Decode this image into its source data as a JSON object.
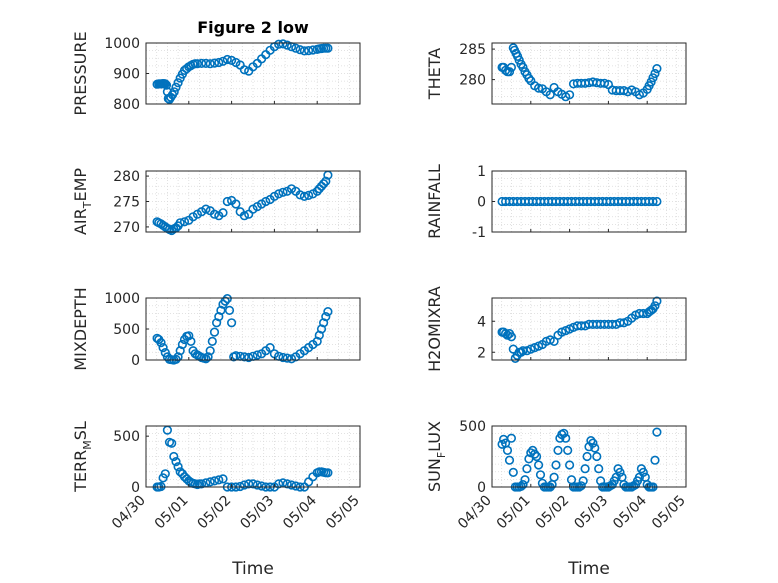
{
  "figure": {
    "xlabel": "Time"
  },
  "chart_data": [
    {
      "type": "scatter",
      "title": "Figure 2 low",
      "ylabel": "PRESSURE",
      "ylabel_sub": "",
      "ylim": [
        800,
        1000
      ],
      "yticks": [
        "800",
        "900",
        "1000"
      ],
      "grid": true,
      "xlim": [
        "04/30",
        "05/05"
      ],
      "xticks": [
        "04/30",
        "05/01",
        "05/02",
        "05/03",
        "05/04",
        "05/05"
      ],
      "color": "#0072BD",
      "x": [
        0.26,
        0.3,
        0.33,
        0.36,
        0.39,
        0.42,
        0.45,
        0.48,
        0.5,
        0.52,
        0.55,
        0.58,
        0.62,
        0.66,
        0.7,
        0.75,
        0.8,
        0.85,
        0.9,
        0.95,
        1.0,
        1.05,
        1.1,
        1.15,
        1.2,
        1.3,
        1.4,
        1.5,
        1.6,
        1.7,
        1.8,
        1.9,
        2.0,
        2.1,
        2.2,
        2.3,
        2.4,
        2.5,
        2.6,
        2.7,
        2.8,
        2.9,
        3.0,
        3.1,
        3.2,
        3.3,
        3.4,
        3.5,
        3.6,
        3.7,
        3.8,
        3.9,
        4.0,
        4.05,
        4.1,
        4.15,
        4.2,
        4.25
      ],
      "y": [
        865,
        866,
        866,
        866,
        867,
        867,
        866,
        862,
        840,
        818,
        815,
        822,
        830,
        840,
        855,
        870,
        885,
        898,
        910,
        916,
        922,
        926,
        930,
        932,
        932,
        933,
        933,
        932,
        934,
        936,
        940,
        946,
        943,
        936,
        928,
        912,
        908,
        922,
        933,
        948,
        962,
        976,
        988,
        996,
        997,
        993,
        988,
        983,
        978,
        974,
        975,
        977,
        979,
        981,
        982,
        983,
        983,
        983
      ]
    },
    {
      "type": "scatter",
      "title": "",
      "ylabel": "THETA",
      "ylabel_sub": "",
      "ylim": [
        276,
        286
      ],
      "yticks": [
        "280",
        "285"
      ],
      "grid": true,
      "xlim": [
        "04/30",
        "05/05"
      ],
      "xticks": [
        "04/30",
        "05/01",
        "05/02",
        "05/03",
        "05/04",
        "05/05"
      ],
      "color": "#0072BD",
      "x": [
        0.26,
        0.3,
        0.35,
        0.4,
        0.45,
        0.5,
        0.55,
        0.58,
        0.62,
        0.66,
        0.7,
        0.75,
        0.8,
        0.85,
        0.9,
        0.95,
        1.0,
        1.1,
        1.2,
        1.3,
        1.4,
        1.5,
        1.6,
        1.7,
        1.8,
        1.9,
        2.0,
        2.1,
        2.2,
        2.3,
        2.4,
        2.5,
        2.6,
        2.7,
        2.8,
        2.9,
        3.0,
        3.1,
        3.2,
        3.3,
        3.4,
        3.5,
        3.6,
        3.7,
        3.8,
        3.9,
        4.0,
        4.05,
        4.1,
        4.15,
        4.2,
        4.25
      ],
      "y": [
        282,
        282,
        281.5,
        281.3,
        281.3,
        282,
        285.2,
        284.8,
        284.3,
        283.8,
        283.2,
        282.5,
        282,
        281.3,
        280.8,
        280.2,
        279.8,
        279,
        278.6,
        278.5,
        278,
        277.5,
        278.7,
        278,
        277.6,
        277.2,
        277.5,
        279.3,
        279.4,
        279.4,
        279.4,
        279.5,
        279.6,
        279.5,
        279.4,
        279.4,
        279.2,
        278.3,
        278.2,
        278.2,
        278.2,
        278,
        278.3,
        278,
        277.5,
        277.8,
        278.4,
        279,
        279.6,
        280.3,
        281,
        281.8
      ]
    },
    {
      "type": "scatter",
      "title": "",
      "ylabel": "AIR",
      "ylabel_sub": "T",
      "ylabel_suffix": "EMP",
      "ylim": [
        269,
        281
      ],
      "yticks": [
        "270",
        "275",
        "280"
      ],
      "grid": true,
      "xlim": [
        "04/30",
        "05/05"
      ],
      "xticks": [
        "04/30",
        "05/01",
        "05/02",
        "05/03",
        "05/04",
        "05/05"
      ],
      "color": "#0072BD",
      "x": [
        0.26,
        0.3,
        0.35,
        0.4,
        0.45,
        0.5,
        0.55,
        0.6,
        0.65,
        0.7,
        0.75,
        0.8,
        0.9,
        1.0,
        1.1,
        1.2,
        1.3,
        1.4,
        1.5,
        1.6,
        1.7,
        1.8,
        1.9,
        2.0,
        2.1,
        2.2,
        2.3,
        2.4,
        2.5,
        2.6,
        2.7,
        2.8,
        2.9,
        3.0,
        3.1,
        3.2,
        3.3,
        3.4,
        3.5,
        3.6,
        3.7,
        3.8,
        3.9,
        4.0,
        4.05,
        4.1,
        4.15,
        4.2,
        4.25
      ],
      "y": [
        271,
        270.8,
        270.6,
        270.3,
        270,
        269.7,
        269.5,
        269.3,
        269.6,
        269.8,
        270.2,
        270.8,
        271,
        271.3,
        272,
        272.5,
        273,
        273.5,
        273.2,
        272.5,
        272.2,
        272.8,
        275,
        275.2,
        274.5,
        273,
        272.2,
        272.5,
        273.5,
        274,
        274.5,
        275,
        275.4,
        276,
        276.5,
        276.8,
        277,
        277.5,
        277,
        276.3,
        276,
        276.2,
        276.5,
        277,
        277.5,
        278,
        278.5,
        279,
        280.2
      ]
    },
    {
      "type": "scatter",
      "title": "",
      "ylabel": "RAINFALL",
      "ylabel_sub": "",
      "ylim": [
        -1,
        1
      ],
      "yticks": [
        "-1",
        "0",
        "1"
      ],
      "grid": true,
      "xlim": [
        "04/30",
        "05/05"
      ],
      "xticks": [
        "04/30",
        "05/01",
        "05/02",
        "05/03",
        "05/04",
        "05/05"
      ],
      "color": "#0072BD",
      "x": [
        0.26,
        0.35,
        0.45,
        0.55,
        0.65,
        0.75,
        0.85,
        0.95,
        1.05,
        1.15,
        1.25,
        1.35,
        1.45,
        1.55,
        1.65,
        1.75,
        1.85,
        1.95,
        2.05,
        2.15,
        2.25,
        2.35,
        2.45,
        2.55,
        2.65,
        2.75,
        2.85,
        2.95,
        3.05,
        3.15,
        3.25,
        3.35,
        3.45,
        3.55,
        3.65,
        3.75,
        3.85,
        3.95,
        4.05,
        4.15,
        4.25
      ],
      "y": [
        0,
        0,
        0,
        0,
        0,
        0,
        0,
        0,
        0,
        0,
        0,
        0,
        0,
        0,
        0,
        0,
        0,
        0,
        0,
        0,
        0,
        0,
        0,
        0,
        0,
        0,
        0,
        0,
        0,
        0,
        0,
        0,
        0,
        0,
        0,
        0,
        0,
        0,
        0,
        0,
        0
      ]
    },
    {
      "type": "scatter",
      "title": "",
      "ylabel": "MIXDEPTH",
      "ylabel_sub": "",
      "ylim": [
        0,
        1000
      ],
      "yticks": [
        "0",
        "500",
        "1000"
      ],
      "grid": true,
      "xlim": [
        "04/30",
        "05/05"
      ],
      "xticks": [
        "04/30",
        "05/01",
        "05/02",
        "05/03",
        "05/04",
        "05/05"
      ],
      "color": "#0072BD",
      "x": [
        0.26,
        0.3,
        0.35,
        0.4,
        0.45,
        0.5,
        0.55,
        0.6,
        0.65,
        0.7,
        0.75,
        0.8,
        0.85,
        0.9,
        0.95,
        1.0,
        1.05,
        1.1,
        1.15,
        1.2,
        1.25,
        1.3,
        1.35,
        1.4,
        1.45,
        1.5,
        1.55,
        1.6,
        1.65,
        1.7,
        1.75,
        1.8,
        1.85,
        1.9,
        1.95,
        2.0,
        2.05,
        2.1,
        2.2,
        2.3,
        2.4,
        2.5,
        2.6,
        2.7,
        2.8,
        2.9,
        3.0,
        3.1,
        3.2,
        3.3,
        3.4,
        3.5,
        3.6,
        3.7,
        3.8,
        3.9,
        4.0,
        4.05,
        4.1,
        4.15,
        4.2,
        4.25
      ],
      "y": [
        350,
        330,
        280,
        200,
        120,
        50,
        10,
        5,
        0,
        10,
        50,
        150,
        250,
        330,
        380,
        390,
        300,
        150,
        100,
        80,
        60,
        40,
        30,
        20,
        50,
        150,
        300,
        450,
        600,
        700,
        800,
        900,
        950,
        990,
        800,
        600,
        50,
        70,
        60,
        50,
        40,
        60,
        80,
        100,
        150,
        200,
        100,
        60,
        40,
        30,
        20,
        50,
        100,
        150,
        200,
        250,
        300,
        400,
        500,
        600,
        700,
        780
      ]
    },
    {
      "type": "scatter",
      "title": "",
      "ylabel": "H2OMIXRA",
      "ylabel_sub": "",
      "ylim": [
        1.5,
        5.5
      ],
      "yticks": [
        "2",
        "4"
      ],
      "grid": true,
      "xlim": [
        "04/30",
        "05/05"
      ],
      "xticks": [
        "04/30",
        "05/01",
        "05/02",
        "05/03",
        "05/04",
        "05/05"
      ],
      "color": "#0072BD",
      "x": [
        0.26,
        0.3,
        0.35,
        0.4,
        0.45,
        0.5,
        0.55,
        0.6,
        0.65,
        0.7,
        0.75,
        0.8,
        0.9,
        1.0,
        1.1,
        1.2,
        1.3,
        1.4,
        1.5,
        1.6,
        1.7,
        1.8,
        1.9,
        2.0,
        2.1,
        2.2,
        2.3,
        2.4,
        2.5,
        2.6,
        2.7,
        2.8,
        2.9,
        3.0,
        3.1,
        3.2,
        3.3,
        3.4,
        3.5,
        3.6,
        3.7,
        3.8,
        3.9,
        4.0,
        4.05,
        4.1,
        4.15,
        4.2,
        4.25
      ],
      "y": [
        3.3,
        3.3,
        3.2,
        3.1,
        3.2,
        3.0,
        2.2,
        1.6,
        1.8,
        2.0,
        2.0,
        2.1,
        2.1,
        2.2,
        2.3,
        2.4,
        2.5,
        2.7,
        2.8,
        2.7,
        3.1,
        3.3,
        3.4,
        3.5,
        3.6,
        3.7,
        3.7,
        3.7,
        3.8,
        3.8,
        3.8,
        3.8,
        3.8,
        3.8,
        3.8,
        3.8,
        3.9,
        3.9,
        4.0,
        4.2,
        4.4,
        4.5,
        4.5,
        4.5,
        4.6,
        4.7,
        4.8,
        5.0,
        5.3
      ]
    },
    {
      "type": "scatter",
      "title": "",
      "ylabel": "TERR",
      "ylabel_sub": "M",
      "ylabel_suffix": "SL",
      "ylim": [
        0,
        600
      ],
      "yticks": [
        "0",
        "500"
      ],
      "grid": true,
      "xlim": [
        "04/30",
        "05/05"
      ],
      "xticks": [
        "04/30",
        "05/01",
        "05/02",
        "05/03",
        "05/04",
        "05/05"
      ],
      "color": "#0072BD",
      "x": [
        0.26,
        0.3,
        0.35,
        0.4,
        0.45,
        0.5,
        0.55,
        0.6,
        0.65,
        0.7,
        0.75,
        0.8,
        0.85,
        0.9,
        0.95,
        1.0,
        1.05,
        1.1,
        1.15,
        1.2,
        1.25,
        1.3,
        1.4,
        1.5,
        1.6,
        1.7,
        1.8,
        1.9,
        2.0,
        2.1,
        2.2,
        2.3,
        2.4,
        2.5,
        2.6,
        2.7,
        2.8,
        2.9,
        3.0,
        3.1,
        3.2,
        3.3,
        3.4,
        3.5,
        3.6,
        3.7,
        3.8,
        3.9,
        4.0,
        4.05,
        4.1,
        4.15,
        4.2,
        4.25
      ],
      "y": [
        0,
        0,
        5,
        90,
        130,
        560,
        440,
        430,
        300,
        250,
        200,
        150,
        130,
        100,
        80,
        60,
        45,
        35,
        30,
        25,
        30,
        30,
        40,
        50,
        60,
        70,
        80,
        0,
        0,
        0,
        5,
        20,
        30,
        30,
        20,
        10,
        0,
        0,
        0,
        30,
        40,
        30,
        20,
        10,
        0,
        0,
        50,
        100,
        140,
        150,
        150,
        145,
        140,
        140
      ]
    },
    {
      "type": "scatter",
      "title": "",
      "ylabel": "SUN",
      "ylabel_sub": "F",
      "ylabel_suffix": "LUX",
      "ylim": [
        0,
        500
      ],
      "yticks": [
        "0",
        "500"
      ],
      "grid": true,
      "xlim": [
        "04/30",
        "05/05"
      ],
      "xticks": [
        "04/30",
        "05/01",
        "05/02",
        "05/03",
        "05/04",
        "05/05"
      ],
      "color": "#0072BD",
      "x": [
        0.26,
        0.3,
        0.35,
        0.4,
        0.45,
        0.5,
        0.55,
        0.6,
        0.65,
        0.7,
        0.75,
        0.8,
        0.85,
        0.9,
        0.95,
        1.0,
        1.05,
        1.1,
        1.15,
        1.2,
        1.25,
        1.3,
        1.35,
        1.4,
        1.45,
        1.5,
        1.55,
        1.6,
        1.65,
        1.7,
        1.75,
        1.8,
        1.85,
        1.9,
        1.95,
        2.0,
        2.05,
        2.1,
        2.15,
        2.2,
        2.25,
        2.3,
        2.35,
        2.4,
        2.45,
        2.5,
        2.55,
        2.6,
        2.65,
        2.7,
        2.75,
        2.8,
        2.85,
        2.9,
        2.95,
        3.0,
        3.05,
        3.1,
        3.15,
        3.2,
        3.25,
        3.3,
        3.35,
        3.4,
        3.45,
        3.5,
        3.55,
        3.6,
        3.65,
        3.7,
        3.75,
        3.8,
        3.85,
        3.9,
        3.95,
        4.0,
        4.05,
        4.1,
        4.15,
        4.2,
        4.25
      ],
      "y": [
        350,
        390,
        360,
        300,
        220,
        400,
        120,
        0,
        0,
        0,
        5,
        20,
        60,
        150,
        230,
        280,
        300,
        270,
        250,
        180,
        100,
        30,
        0,
        0,
        0,
        0,
        20,
        80,
        180,
        300,
        400,
        430,
        440,
        400,
        300,
        180,
        60,
        0,
        0,
        0,
        0,
        10,
        50,
        150,
        250,
        330,
        380,
        360,
        320,
        250,
        150,
        50,
        0,
        0,
        0,
        0,
        10,
        20,
        50,
        80,
        150,
        120,
        80,
        20,
        0,
        0,
        0,
        0,
        10,
        20,
        50,
        80,
        150,
        120,
        80,
        20,
        0,
        0,
        0,
        220,
        450
      ]
    }
  ]
}
